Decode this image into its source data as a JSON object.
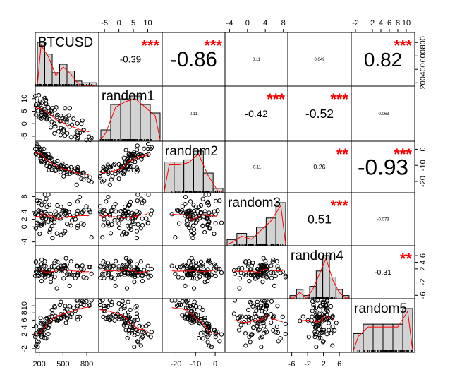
{
  "chart_data": {
    "type": "scatter",
    "kind": "correlation matrix (pairs plot)",
    "variables": [
      "BTCUSD",
      "random1",
      "random2",
      "random3",
      "random4",
      "random5"
    ],
    "axis_ticks": {
      "BTCUSD": [
        200,
        500,
        800
      ],
      "random1": [
        -5,
        0,
        5,
        10
      ],
      "random2": [
        -20,
        -10,
        0
      ],
      "random3": [
        -4,
        0,
        2,
        4,
        6,
        8
      ],
      "random4": [
        -6,
        -2,
        2,
        6
      ],
      "random5": [
        -2,
        2,
        4,
        6,
        8,
        10
      ]
    },
    "top_axis_ticks": {
      "random1": [
        "-5",
        "0",
        "5",
        "10"
      ],
      "random3": [
        "-4",
        "0",
        "4",
        "8"
      ],
      "random5": [
        "-2",
        "2",
        "4",
        "6",
        "8",
        "10"
      ]
    },
    "bottom_axis_ticks": {
      "BTCUSD": [
        "200",
        "500",
        "800"
      ],
      "random2": [
        "-20",
        "-10",
        "0"
      ],
      "random4": [
        "-6",
        "-2",
        "2",
        "6"
      ]
    },
    "left_axis_ticks": {
      "random1": [
        "-5",
        "0",
        "5",
        "10"
      ],
      "random3": [
        "-4",
        "0",
        "2",
        "4",
        "8"
      ],
      "random5": [
        "-2",
        "2",
        "4",
        "6",
        "8",
        "10"
      ]
    },
    "right_axis_ticks": {
      "BTCUSD": [
        "200",
        "400",
        "600",
        "800"
      ],
      "random2": [
        "-20",
        "-10",
        "0"
      ],
      "random4": [
        "-6",
        "-2",
        "2",
        "4",
        "6"
      ]
    },
    "correlations": [
      {
        "row": 0,
        "col": 1,
        "label": "-0.39",
        "r": -0.39,
        "stars": "***"
      },
      {
        "row": 0,
        "col": 2,
        "label": "-0.86",
        "r": -0.86,
        "stars": "***"
      },
      {
        "row": 0,
        "col": 3,
        "label": "0.11",
        "r": 0.11,
        "stars": ""
      },
      {
        "row": 0,
        "col": 4,
        "label": "0.049",
        "r": 0.049,
        "stars": ""
      },
      {
        "row": 0,
        "col": 5,
        "label": "0.82",
        "r": 0.82,
        "stars": "***"
      },
      {
        "row": 1,
        "col": 2,
        "label": "0.11",
        "r": 0.11,
        "stars": ""
      },
      {
        "row": 1,
        "col": 3,
        "label": "-0.42",
        "r": -0.42,
        "stars": "***"
      },
      {
        "row": 1,
        "col": 4,
        "label": "-0.52",
        "r": -0.52,
        "stars": "***"
      },
      {
        "row": 1,
        "col": 5,
        "label": "-0.063",
        "r": -0.063,
        "stars": ""
      },
      {
        "row": 2,
        "col": 3,
        "label": "-0.11",
        "r": -0.11,
        "stars": ""
      },
      {
        "row": 2,
        "col": 4,
        "label": "0.26",
        "r": 0.26,
        "stars": "**"
      },
      {
        "row": 2,
        "col": 5,
        "label": "-0.93",
        "r": -0.93,
        "stars": "***"
      },
      {
        "row": 3,
        "col": 4,
        "label": "0.51",
        "r": 0.51,
        "stars": "***"
      },
      {
        "row": 3,
        "col": 5,
        "label": "-0.073",
        "r": -0.073,
        "stars": ""
      },
      {
        "row": 4,
        "col": 5,
        "label": "-0.31",
        "r": -0.31,
        "stars": "**"
      }
    ],
    "histograms": [
      {
        "var": "BTCUSD",
        "range": [
          150,
          950
        ],
        "counts": [
          26,
          19,
          8,
          13,
          9,
          3,
          2,
          2
        ]
      },
      {
        "var": "random1",
        "range": [
          -6,
          14
        ],
        "counts": [
          4,
          13,
          15,
          16,
          13,
          10
        ]
      },
      {
        "var": "random2",
        "range": [
          -25,
          5
        ],
        "counts": [
          14,
          14,
          15,
          19,
          9,
          2
        ]
      },
      {
        "var": "random3",
        "range": [
          -4,
          8
        ],
        "counts": [
          2,
          4,
          3,
          6,
          9,
          14
        ]
      },
      {
        "var": "random4",
        "range": [
          -6,
          8
        ],
        "counts": [
          1,
          3,
          1,
          4,
          9,
          14,
          7,
          3,
          1
        ]
      },
      {
        "var": "random5",
        "range": [
          -3,
          12
        ],
        "counts": [
          6,
          9,
          9,
          9,
          9,
          14
        ]
      }
    ],
    "colors": {
      "smooth": "#ff0000",
      "stars": "#ff0000",
      "hist": "#d3d3d3"
    },
    "grid": false
  }
}
